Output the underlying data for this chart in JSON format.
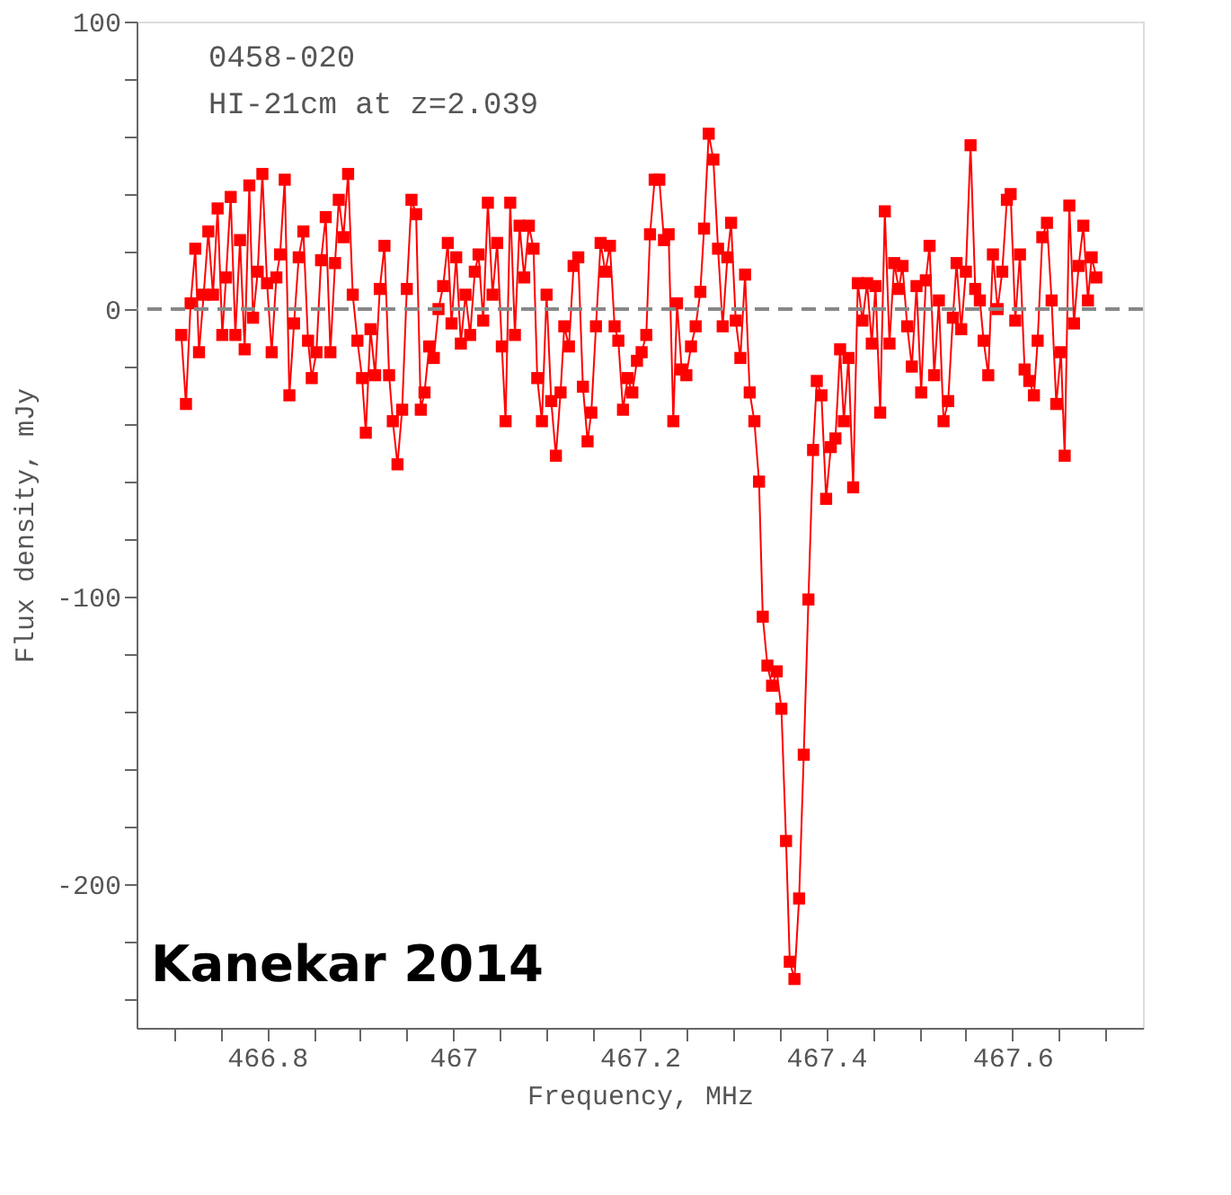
{
  "chart_data": {
    "type": "line",
    "xlabel": "Frequency, MHz",
    "ylabel": "Flux density, mJy",
    "annotations": [
      "0458-020",
      "HI-21cm at z=2.039",
      "Kanekar 2014"
    ],
    "x": [
      466.708,
      466.713,
      466.718,
      466.723,
      466.727,
      466.732,
      466.737,
      466.742,
      466.747,
      466.752,
      466.756,
      466.761,
      466.766,
      466.771,
      466.776,
      466.781,
      466.785,
      466.79,
      466.795,
      466.8,
      466.805,
      466.81,
      466.814,
      466.819,
      466.824,
      466.829,
      466.834,
      466.839,
      466.844,
      466.848,
      466.853,
      466.858,
      466.863,
      466.868,
      466.873,
      466.877,
      466.882,
      466.887,
      466.892,
      466.897,
      466.902,
      466.906,
      466.911,
      466.916,
      466.921,
      466.926,
      466.931,
      466.935,
      466.94,
      466.945,
      466.95,
      466.955,
      466.96,
      466.965,
      466.969,
      466.974,
      466.979,
      466.984,
      466.989,
      466.994,
      466.998,
      467.003,
      467.008,
      467.013,
      467.018,
      467.023,
      467.027,
      467.032,
      467.037,
      467.042,
      467.047,
      467.052,
      467.056,
      467.061,
      467.066,
      467.071,
      467.076,
      467.081,
      467.086,
      467.09,
      467.095,
      467.1,
      467.105,
      467.11,
      467.115,
      467.119,
      467.124,
      467.129,
      467.134,
      467.139,
      467.144,
      467.148,
      467.153,
      467.158,
      467.163,
      467.168,
      467.173,
      467.177,
      467.182,
      467.187,
      467.192,
      467.197,
      467.202,
      467.207,
      467.211,
      467.216,
      467.221,
      467.226,
      467.231,
      467.236,
      467.24,
      467.245,
      467.25,
      467.255,
      467.26,
      467.265,
      467.269,
      467.274,
      467.279,
      467.284,
      467.289,
      467.294,
      467.298,
      467.303,
      467.308,
      467.313,
      467.318,
      467.323,
      467.328,
      467.332,
      467.337,
      467.342,
      467.347,
      467.352,
      467.357,
      467.361,
      467.366,
      467.371,
      467.376,
      467.381,
      467.386,
      467.39,
      467.395,
      467.4,
      467.405,
      467.41,
      467.415,
      467.419,
      467.424,
      467.429,
      467.434,
      467.439,
      467.444,
      467.449,
      467.453,
      467.458,
      467.463,
      467.468,
      467.473,
      467.478,
      467.482,
      467.487,
      467.492,
      467.497,
      467.502,
      467.507,
      467.511,
      467.516,
      467.521,
      467.526,
      467.531,
      467.536,
      467.54,
      467.545,
      467.55,
      467.555,
      467.56,
      467.565,
      467.569,
      467.574,
      467.579,
      467.584,
      467.589,
      467.594,
      467.598,
      467.603,
      467.608,
      467.613,
      467.618,
      467.623,
      467.627,
      467.632,
      467.637,
      467.642,
      467.647,
      467.652,
      467.656,
      467.661,
      467.666,
      467.671,
      467.676,
      467.681,
      467.685,
      467.69
    ],
    "series": [
      {
        "color": "#ff0000",
        "marker": "square",
        "line_style": "solid",
        "values": [
          -9,
          -33,
          2,
          21,
          -15,
          5,
          27,
          5,
          35,
          -9,
          11,
          39,
          -9,
          24,
          -14,
          43,
          -3,
          13,
          47,
          9,
          -15,
          11,
          19,
          45,
          -30,
          -5,
          18,
          27,
          -11,
          -24,
          -15,
          17,
          32,
          -15,
          16,
          38,
          25,
          47,
          5,
          -11,
          -24,
          -43,
          -7,
          -23,
          7,
          22,
          -23,
          -39,
          -54,
          -35,
          7,
          38,
          33,
          -35,
          -29,
          -13,
          -17,
          0,
          8,
          23,
          -5,
          18,
          -12,
          5,
          -9,
          13,
          19,
          -4,
          37,
          5,
          23,
          -13,
          -39,
          37,
          -9,
          29,
          11,
          29,
          21,
          -24,
          -39,
          5,
          -32,
          -51,
          -29,
          -6,
          -13,
          15,
          18,
          -27,
          -46,
          -36,
          -6,
          23,
          13,
          22,
          -6,
          -11,
          -35,
          -24,
          -29,
          -18,
          -15,
          -9,
          26,
          45,
          45,
          24,
          26,
          -39,
          2,
          -21,
          -23,
          -13,
          -6,
          6,
          28,
          61,
          52,
          21,
          -6,
          18,
          30,
          -4,
          -17,
          12,
          -29,
          -39,
          -60,
          -107,
          -124,
          -131,
          -126,
          -139,
          -185,
          -227,
          -233,
          -205,
          -155,
          -101,
          -49,
          -25,
          -30,
          -66,
          -48,
          -45,
          -14,
          -39,
          -17,
          -62,
          9,
          -4,
          9,
          -12,
          8,
          -36,
          34,
          -12,
          16,
          7,
          15,
          -6,
          -20,
          8,
          -29,
          10,
          22,
          -23,
          3,
          -39,
          -32,
          -3,
          16,
          -7,
          13,
          57,
          7,
          3,
          -11,
          -23,
          19,
          0,
          13,
          38,
          40,
          -4,
          19,
          -21,
          -25,
          -30,
          -11,
          25,
          30,
          3,
          -33,
          -15,
          -51,
          36,
          -5,
          15,
          29,
          3,
          18,
          11
        ]
      }
    ],
    "xlim": [
      466.66,
      467.74
    ],
    "xticks": [
      {
        "value": 466.7,
        "label": null
      },
      {
        "value": 466.75,
        "label": null
      },
      466.8,
      {
        "value": 466.85,
        "label": null
      },
      {
        "value": 466.9,
        "label": null
      },
      {
        "value": 466.95,
        "label": null
      },
      467,
      {
        "value": 467.05,
        "label": null
      },
      {
        "value": 467.1,
        "label": null
      },
      {
        "value": 467.15,
        "label": null
      },
      467.2,
      {
        "value": 467.25,
        "label": null
      },
      {
        "value": 467.3,
        "label": null
      },
      {
        "value": 467.35,
        "label": null
      },
      467.4,
      {
        "value": 467.45,
        "label": null
      },
      {
        "value": 467.5,
        "label": null
      },
      {
        "value": 467.55,
        "label": null
      },
      467.6,
      {
        "value": 467.65,
        "label": null
      },
      {
        "value": 467.7,
        "label": null
      }
    ],
    "ylim": [
      -250,
      100
    ],
    "yticks": [
      {
        "value": -240,
        "label": null
      },
      {
        "value": -220,
        "label": null
      },
      -200,
      {
        "value": -180,
        "label": null
      },
      {
        "value": -160,
        "label": null
      },
      {
        "value": -140,
        "label": null
      },
      {
        "value": -120,
        "label": null
      },
      -100,
      {
        "value": -80,
        "label": null
      },
      {
        "value": -60,
        "label": null
      },
      {
        "value": -40,
        "label": null
      },
      {
        "value": -20,
        "label": null
      },
      0,
      {
        "value": 20,
        "label": null
      },
      {
        "value": 40,
        "label": null
      },
      {
        "value": 60,
        "label": null
      },
      {
        "value": 80,
        "label": null
      },
      100
    ],
    "ref_lines": [
      {
        "axis": "y",
        "value": 0,
        "color": "#888888",
        "line_style": "dashed"
      }
    ]
  }
}
